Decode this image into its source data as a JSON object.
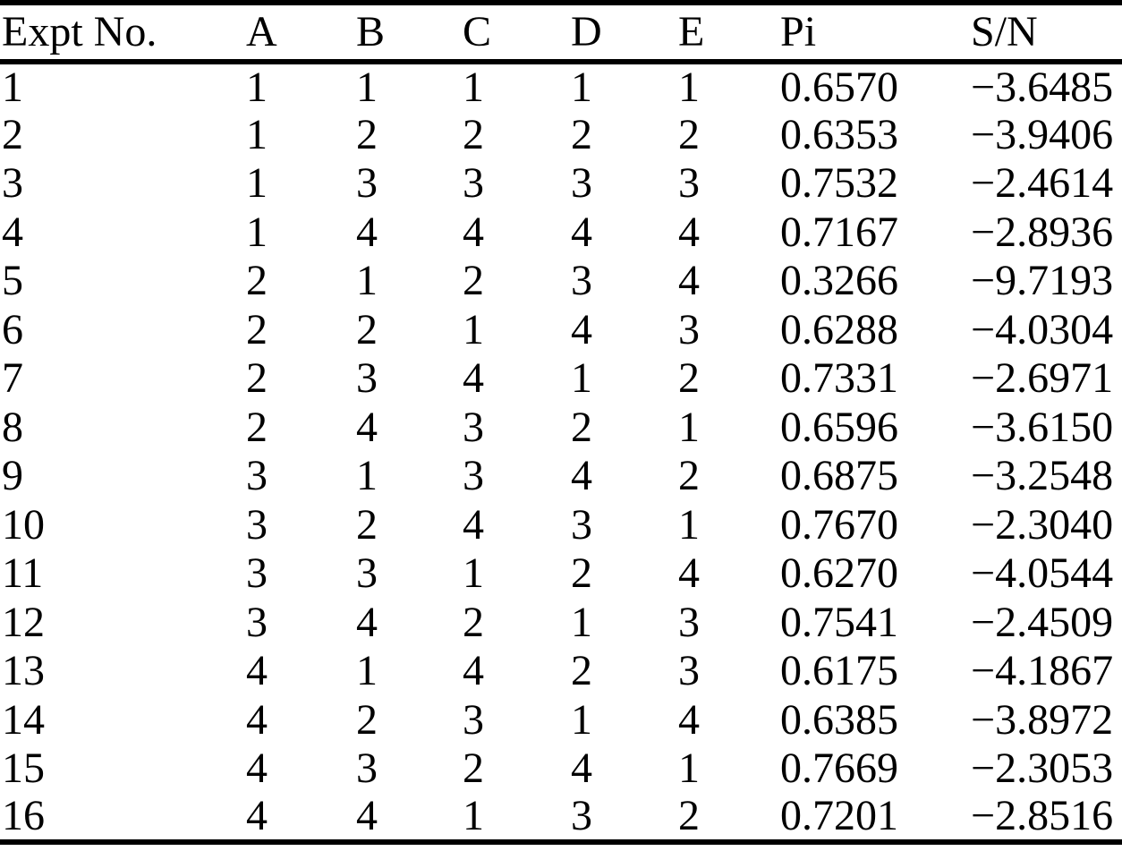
{
  "page": {
    "background_color": "#ffffff",
    "text_color": "#000000",
    "rule_color": "#000000",
    "description": "Scanned journal table: L16 Taguchi orthogonal array experiment results with Pi values and S/N ratios"
  },
  "table": {
    "headers": [
      "Expt No.",
      "A",
      "B",
      "C",
      "D",
      "E",
      "Pi",
      "S/N"
    ],
    "rows": [
      [
        "1",
        "1",
        "1",
        "1",
        "1",
        "1",
        "0.6570",
        "−3.6485"
      ],
      [
        "2",
        "1",
        "2",
        "2",
        "2",
        "2",
        "0.6353",
        "−3.9406"
      ],
      [
        "3",
        "1",
        "3",
        "3",
        "3",
        "3",
        "0.7532",
        "−2.4614"
      ],
      [
        "4",
        "1",
        "4",
        "4",
        "4",
        "4",
        "0.7167",
        "−2.8936"
      ],
      [
        "5",
        "2",
        "1",
        "2",
        "3",
        "4",
        "0.3266",
        "−9.7193"
      ],
      [
        "6",
        "2",
        "2",
        "1",
        "4",
        "3",
        "0.6288",
        "−4.0304"
      ],
      [
        "7",
        "2",
        "3",
        "4",
        "1",
        "2",
        "0.7331",
        "−2.6971"
      ],
      [
        "8",
        "2",
        "4",
        "3",
        "2",
        "1",
        "0.6596",
        "−3.6150"
      ],
      [
        "9",
        "3",
        "1",
        "3",
        "4",
        "2",
        "0.6875",
        "−3.2548"
      ],
      [
        "10",
        "3",
        "2",
        "4",
        "3",
        "1",
        "0.7670",
        "−2.3040"
      ],
      [
        "11",
        "3",
        "3",
        "1",
        "2",
        "4",
        "0.6270",
        "−4.0544"
      ],
      [
        "12",
        "3",
        "4",
        "2",
        "1",
        "3",
        "0.7541",
        "−2.4509"
      ],
      [
        "13",
        "4",
        "1",
        "4",
        "2",
        "3",
        "0.6175",
        "−4.1867"
      ],
      [
        "14",
        "4",
        "2",
        "3",
        "1",
        "4",
        "0.6385",
        "−3.8972"
      ],
      [
        "15",
        "4",
        "3",
        "2",
        "4",
        "1",
        "0.7669",
        "−2.3053"
      ],
      [
        "16",
        "4",
        "4",
        "1",
        "3",
        "2",
        "0.7201",
        "−2.8516"
      ]
    ]
  }
}
